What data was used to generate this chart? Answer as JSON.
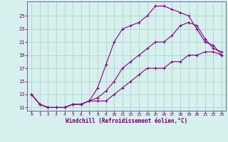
{
  "xlabel": "Windchill (Refroidissement éolien,°C)",
  "bg_color": "#d6f0ee",
  "line_color": "#880088",
  "grid_color": "#aacccc",
  "text_color": "#660066",
  "spine_color": "#666688",
  "xlim": [
    -0.5,
    23.5
  ],
  "ylim": [
    10.5,
    27.2
  ],
  "xticks": [
    0,
    1,
    2,
    3,
    4,
    5,
    6,
    7,
    8,
    9,
    10,
    11,
    12,
    13,
    14,
    15,
    16,
    17,
    18,
    19,
    20,
    21,
    22,
    23
  ],
  "yticks": [
    11,
    13,
    15,
    17,
    19,
    21,
    23,
    25
  ],
  "line1_x": [
    0,
    1,
    2,
    3,
    4,
    5,
    6,
    7,
    8,
    9,
    10,
    11,
    12,
    13,
    14,
    15,
    16,
    17,
    18,
    19,
    20,
    21,
    22,
    23
  ],
  "line1_y": [
    13,
    11.5,
    11,
    11,
    11,
    11.5,
    11.5,
    12,
    12,
    12,
    13,
    14,
    15,
    16,
    17,
    17,
    17,
    18,
    18,
    19,
    19,
    19.5,
    19.5,
    19
  ],
  "line2_x": [
    0,
    1,
    2,
    3,
    4,
    5,
    6,
    7,
    8,
    9,
    10,
    11,
    12,
    13,
    14,
    15,
    16,
    17,
    18,
    19,
    20,
    21,
    22,
    23
  ],
  "line2_y": [
    13,
    11.5,
    11,
    11,
    11,
    11.5,
    11.5,
    12,
    14,
    17.5,
    21,
    23,
    23.5,
    24,
    25,
    26.5,
    26.5,
    26,
    25.5,
    25,
    23,
    21,
    20.5,
    19
  ],
  "line3_x": [
    0,
    1,
    2,
    3,
    4,
    5,
    6,
    7,
    8,
    9,
    10,
    11,
    12,
    13,
    14,
    15,
    16,
    17,
    18,
    19,
    20,
    21,
    22,
    23
  ],
  "line3_y": [
    13,
    11.5,
    11,
    11,
    11,
    11.5,
    11.5,
    12,
    12.5,
    13.5,
    15,
    17,
    18,
    19,
    20,
    21,
    21,
    22,
    23.5,
    24,
    23.5,
    21.5,
    20,
    19.5
  ]
}
